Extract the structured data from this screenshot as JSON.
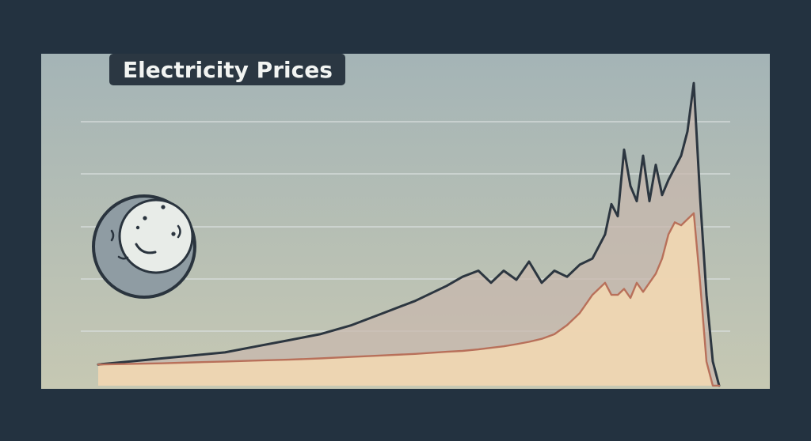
{
  "chart_data": {
    "type": "area",
    "title": "Electricity Prices",
    "xlabel": "",
    "ylabel": "",
    "grid": true,
    "legend": "none",
    "x": [
      0,
      0.05,
      0.1,
      0.15,
      0.2,
      0.25,
      0.3,
      0.35,
      0.4,
      0.45,
      0.5,
      0.55,
      0.575,
      0.6,
      0.62,
      0.64,
      0.66,
      0.68,
      0.7,
      0.72,
      0.74,
      0.76,
      0.78,
      0.79,
      0.8,
      0.81,
      0.82,
      0.83,
      0.84,
      0.85,
      0.86,
      0.87,
      0.88,
      0.89,
      0.9,
      0.91,
      0.92,
      0.93,
      0.94,
      0.95,
      0.96,
      0.97,
      0.98
    ],
    "series": [
      {
        "values": [
          0.07,
          0.08,
          0.09,
          0.1,
          0.11,
          0.13,
          0.15,
          0.17,
          0.2,
          0.24,
          0.28,
          0.33,
          0.36,
          0.38,
          0.34,
          0.38,
          0.35,
          0.41,
          0.34,
          0.38,
          0.36,
          0.4,
          0.42,
          0.46,
          0.5,
          0.6,
          0.56,
          0.78,
          0.66,
          0.61,
          0.76,
          0.61,
          0.73,
          0.63,
          0.68,
          0.72,
          0.76,
          0.84,
          1.0,
          0.62,
          0.3,
          0.08,
          0.0
        ],
        "color": "#2c3640",
        "fill": "#c8b7ad"
      },
      {
        "values": [
          0.07,
          0.072,
          0.074,
          0.077,
          0.08,
          0.083,
          0.086,
          0.09,
          0.095,
          0.1,
          0.105,
          0.112,
          0.115,
          0.12,
          0.125,
          0.13,
          0.137,
          0.145,
          0.155,
          0.17,
          0.2,
          0.24,
          0.3,
          0.32,
          0.34,
          0.3,
          0.3,
          0.32,
          0.29,
          0.34,
          0.31,
          0.34,
          0.37,
          0.42,
          0.5,
          0.54,
          0.53,
          0.55,
          0.57,
          0.34,
          0.08,
          0.0,
          0.0
        ],
        "color": "#b8705a",
        "fill": "#efd6b2"
      }
    ],
    "ylim": [
      0,
      1.05
    ],
    "colors": {
      "background_top": "#a9b8ba",
      "background_bottom": "#c3c7b4",
      "grid": "#d9dfdf"
    }
  },
  "decor": {
    "moon_icon": "moon-icon"
  }
}
